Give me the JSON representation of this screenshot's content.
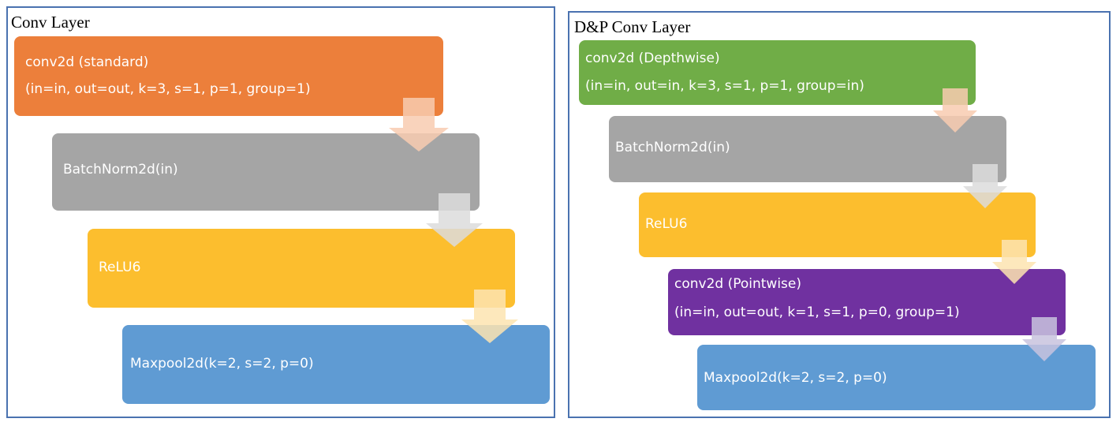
{
  "left_panel": {
    "title": "Conv Layer",
    "blocks": [
      {
        "lines": [
          "conv2d (standard)",
          "(in=in, out=out, k=3, s=1, p=1, group=1)"
        ],
        "color": "#ec7f3b"
      },
      {
        "lines": [
          "BatchNorm2d(in)"
        ],
        "color": "#a5a5a5"
      },
      {
        "lines": [
          "ReLU6"
        ],
        "color": "#fcbe2e"
      },
      {
        "lines": [
          "Maxpool2d(k=2, s=2, p=0)"
        ],
        "color": "#5f9bd3"
      }
    ]
  },
  "right_panel": {
    "title": "D&P Conv Layer",
    "blocks": [
      {
        "lines": [
          "conv2d (Depthwise)",
          "(in=in, out=in, k=3, s=1, p=1, group=in)"
        ],
        "color": "#70ad47"
      },
      {
        "lines": [
          "BatchNorm2d(in)"
        ],
        "color": "#a5a5a5"
      },
      {
        "lines": [
          "ReLU6"
        ],
        "color": "#fcbe2e"
      },
      {
        "lines": [
          "conv2d (Pointwise)",
          "(in=in, out=out, k=1, s=1, p=0, group=1)"
        ],
        "color": "#7031a0"
      },
      {
        "lines": [
          "Maxpool2d(k=2, s=2, p=0)"
        ],
        "color": "#5f9bd3"
      }
    ]
  },
  "arrow_colors": {
    "orange": "#f8cbb0",
    "gray": "#dcdcdc",
    "yellow": "#fde4b0",
    "purple": "#c8c3de"
  }
}
